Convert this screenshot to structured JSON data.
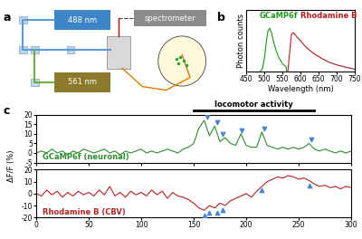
{
  "panels": [
    "a",
    "b",
    "c"
  ],
  "diagram": {
    "nodes": [
      {
        "label": "488 nm",
        "color": "#3d85c6"
      },
      {
        "label": "561 nm",
        "color": "#8a7a2a"
      },
      {
        "label": "spectrometer",
        "color": "#8c8c8c"
      }
    ]
  },
  "chart_data": [
    {
      "type": "line",
      "xlabel": "Wavelength (nm)",
      "ylabel": "Photon counts",
      "xlim": [
        450,
        750
      ],
      "xticks": [
        450,
        500,
        550,
        600,
        650,
        700,
        750
      ],
      "ylim": [
        0,
        10000
      ],
      "tick_labels": "x",
      "series": [
        {
          "name": "GCaMP6f",
          "color": "#1a9a1a",
          "x": [
            488,
            495,
            500,
            505,
            510,
            515,
            520,
            525,
            530,
            535,
            540,
            550,
            560,
            562
          ],
          "values": [
            0,
            500,
            2000,
            4500,
            6500,
            7000,
            6300,
            5000,
            3900,
            3000,
            2300,
            1300,
            800,
            0
          ]
        },
        {
          "name": "Rhodamine B",
          "color": "#b01c1c",
          "x": [
            565,
            570,
            575,
            580,
            585,
            590,
            600,
            610,
            620,
            640,
            660,
            680,
            700,
            720,
            750
          ],
          "values": [
            0,
            3000,
            6000,
            6300,
            6000,
            5600,
            5000,
            4300,
            3700,
            2800,
            2100,
            1500,
            1100,
            800,
            400
          ]
        }
      ]
    },
    {
      "type": "line",
      "ylabel": "ΔF/F (%)",
      "xlim": [
        0,
        300
      ],
      "xticks": [
        0,
        50,
        100,
        150,
        200,
        250,
        300
      ],
      "ylim": [
        -5,
        20
      ],
      "yticks": [
        -5,
        0,
        5,
        10,
        15,
        20
      ],
      "tick_labels": "y",
      "annotations": [
        {
          "text": "locomotor activity",
          "x": [
            150,
            265
          ]
        }
      ],
      "x": [
        0,
        5,
        10,
        15,
        20,
        25,
        30,
        35,
        40,
        45,
        50,
        55,
        60,
        65,
        70,
        75,
        80,
        85,
        90,
        95,
        100,
        105,
        110,
        115,
        120,
        125,
        130,
        135,
        140,
        145,
        150,
        155,
        160,
        165,
        170,
        175,
        180,
        185,
        190,
        195,
        200,
        205,
        210,
        215,
        220,
        225,
        230,
        235,
        240,
        245,
        250,
        255,
        260,
        265,
        270,
        275,
        280,
        285,
        290,
        295,
        300
      ],
      "series": [
        {
          "name": "GCaMP6f (neuronal)",
          "color": "#2e8b2e",
          "values": [
            0,
            1,
            0,
            2,
            0,
            1,
            -1,
            1,
            0,
            2,
            1,
            0,
            1,
            2,
            0,
            1,
            -1,
            1,
            0,
            1,
            2,
            0,
            1,
            0,
            1,
            2,
            1,
            0,
            2,
            3,
            5,
            13,
            17,
            9,
            14,
            6,
            8,
            5,
            4,
            10,
            4,
            3,
            3,
            11,
            4,
            3,
            2,
            3,
            2,
            3,
            2,
            3,
            5,
            2,
            1,
            2,
            1,
            0,
            1,
            0,
            1
          ]
        },
        {
          "type": "scatter",
          "marker": "triangle_down",
          "color": "#4a86d4",
          "x": [
            163,
            172,
            178,
            196,
            217,
            262
          ],
          "values": [
            19,
            16,
            10,
            12,
            13,
            7
          ]
        }
      ]
    },
    {
      "type": "line",
      "xlim": [
        0,
        300
      ],
      "xticks": [
        0,
        50,
        100,
        150,
        200,
        250,
        300
      ],
      "ylim": [
        -20,
        20
      ],
      "yticks": [
        -20,
        -10,
        0,
        10,
        20
      ],
      "x": [
        0,
        5,
        10,
        15,
        20,
        25,
        30,
        35,
        40,
        45,
        50,
        55,
        60,
        65,
        70,
        75,
        80,
        85,
        90,
        95,
        100,
        105,
        110,
        115,
        120,
        125,
        130,
        135,
        140,
        145,
        150,
        155,
        160,
        165,
        170,
        175,
        180,
        185,
        190,
        195,
        200,
        205,
        210,
        215,
        220,
        225,
        230,
        235,
        240,
        245,
        250,
        255,
        260,
        265,
        270,
        275,
        280,
        285,
        290,
        295,
        300
      ],
      "series": [
        {
          "name": "Rhodamine B (CBV)",
          "color": "#b22222",
          "values": [
            0,
            -2,
            3,
            -1,
            2,
            -3,
            1,
            -2,
            2,
            -1,
            1,
            -2,
            3,
            -1,
            6,
            -2,
            1,
            -3,
            2,
            -1,
            1,
            -2,
            3,
            -1,
            2,
            -4,
            1,
            -2,
            -3,
            -5,
            -8,
            -12,
            -14,
            -10,
            -12,
            -8,
            -10,
            -6,
            -4,
            -2,
            0,
            -3,
            2,
            6,
            10,
            12,
            14,
            13,
            15,
            14,
            12,
            13,
            11,
            8,
            6,
            7,
            5,
            6,
            4,
            6,
            5
          ]
        },
        {
          "type": "scatter",
          "marker": "triangle_up",
          "color": "#4a86d4",
          "x": [
            160,
            165,
            172,
            178,
            215,
            260
          ],
          "values": [
            -18,
            -16,
            -16,
            -14,
            3,
            7
          ]
        }
      ]
    }
  ]
}
